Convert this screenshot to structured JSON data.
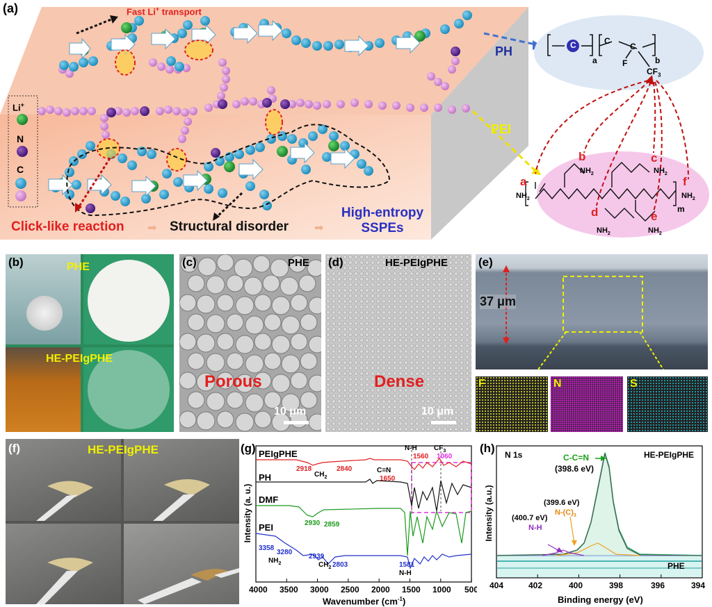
{
  "panel_a": {
    "label": "(a)",
    "fast_li": "Fast Li",
    "fast_li_sup": "+",
    "fast_li_tail": " transport",
    "legend": {
      "li": "Li",
      "li_sup": "+",
      "n": "N",
      "c": "C"
    },
    "ph_label": "PH",
    "pei_label": "PEI",
    "click_reaction": "Click-like reaction",
    "structural_disorder": "Structural disorder",
    "high_entropy_1": "High-entropy",
    "high_entropy_2": "SSPEs",
    "ph_formula": {
      "a": "a",
      "b": "b",
      "f": "F",
      "cf3": "CF",
      "cf3_sub": "3",
      "c": "C"
    },
    "pei_letters": [
      "a",
      "b",
      "c",
      "d",
      "e",
      "f"
    ],
    "nh2": "NH",
    "nh2_sub": "2",
    "m": "m"
  },
  "panel_b": {
    "label": "(b)",
    "phe": "PHE",
    "he": "HE-PEIgPHE"
  },
  "panel_c": {
    "label": "(c)",
    "title": "PHE",
    "caption": "Porous",
    "scale": "10 μm"
  },
  "panel_d": {
    "label": "(d)",
    "title": "HE-PEIgPHE",
    "caption": "Dense",
    "scale": "10 μm"
  },
  "panel_e": {
    "label": "(e)",
    "thickness": "37 μm",
    "maps": [
      "F",
      "N",
      "S"
    ]
  },
  "panel_f": {
    "label": "(f)",
    "title": "HE-PEIgPHE"
  },
  "panel_g": {
    "label": "(g)",
    "xlabel": "Wavenumber (cm",
    "xlabel_sup": "-1",
    "xlabel_tail": ")",
    "ylabel": "Intensity (a. u.)",
    "series": [
      "PEIgPHE",
      "PH",
      "DMF",
      "PEI"
    ],
    "ticks": [
      "4000",
      "3500",
      "3000",
      "2500",
      "2000",
      "1500",
      "1000",
      "500"
    ],
    "annotations": {
      "a2918": "2918",
      "ch2": "CH",
      "a2840": "2840",
      "cn": "C=N",
      "a1650": "1650",
      "nh": "N-H",
      "a1560": "1560",
      "cf3": "CF",
      "a1060": "1060",
      "a2930": "2930",
      "a2859": "2859",
      "a3358": "3358",
      "a3280": "3280",
      "nh2": "NH",
      "a2939": "2939",
      "a2803": "2803",
      "a1581": "1581",
      "nh2b": "N-H",
      "sub2": "2",
      "sub3": "3"
    }
  },
  "panel_h": {
    "label": "(h)",
    "title": "N 1s",
    "sample": "HE-PEIgPHE",
    "phe": "PHE",
    "xlabel": "Binding energy (eV)",
    "ylabel": "Intensity (a.u.)",
    "ticks": [
      "404",
      "402",
      "400",
      "398",
      "396",
      "394"
    ],
    "peaks": {
      "ccn": "C-C=N",
      "ccn_ev": "(398.6 eV)",
      "nc3_ev": "(399.6 eV)",
      "nc3": "N-(C)",
      "nc3_sub": "3",
      "nh_ev": "(400.7 eV)",
      "nh": "N-H"
    }
  },
  "colors": {
    "red": "#e02020",
    "green": "#1aa01a",
    "blue": "#1f2fd0",
    "magenta": "#e030e0",
    "yellow": "#f0f000"
  }
}
